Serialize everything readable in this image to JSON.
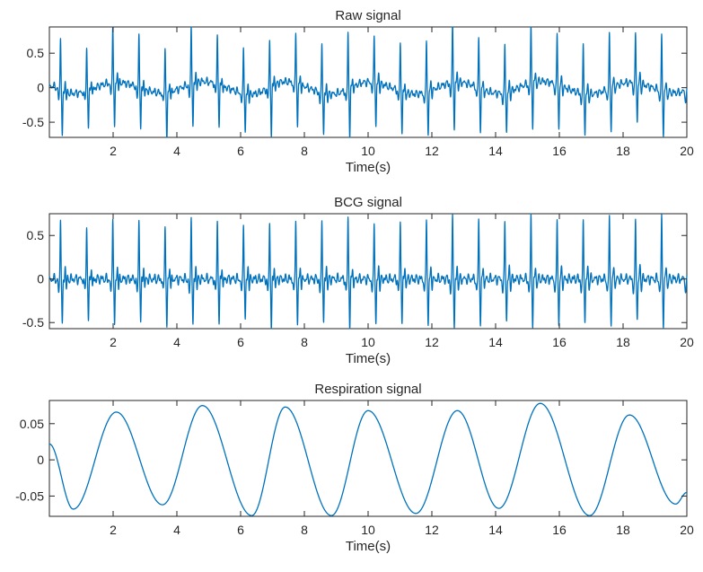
{
  "figure": {
    "line_color": "#0072BD",
    "axes_color": "#262626"
  },
  "chart_data": [
    {
      "type": "line",
      "title": "Raw signal",
      "xlabel": "Time(s)",
      "ylabel": "",
      "xlim": [
        0,
        20
      ],
      "ylim": [
        -0.72,
        0.88
      ],
      "xticks": [
        2,
        4,
        6,
        8,
        10,
        12,
        14,
        16,
        18,
        20
      ],
      "yticks": [
        0.5,
        0,
        -0.5
      ],
      "ytick_labels": [
        "0.5",
        "0",
        "-0.5"
      ],
      "grid": false,
      "series": [
        {
          "waveform": "bcg",
          "beat_period_s": 0.82,
          "first_beat_s": 0.35,
          "peak_amplitudes": [
            0.78,
            0.65,
            0.88,
            0.8,
            0.7,
            0.88,
            0.75,
            0.72,
            0.7,
            0.78,
            0.74,
            0.85,
            0.72,
            0.7,
            0.78,
            0.9,
            0.74,
            0.72,
            0.82,
            0.76,
            0.7,
            0.8,
            0.72,
            0.78,
            0.72
          ],
          "trough_amplitudes": [
            -0.7,
            -0.55,
            -0.68,
            -0.6,
            -0.72,
            -0.65,
            -0.6,
            -0.58,
            -0.72,
            -0.62,
            -0.6,
            -0.7,
            -0.64,
            -0.58,
            -0.62,
            -0.68,
            -0.6,
            -0.58,
            -0.64,
            -0.62,
            -0.58,
            -0.6,
            -0.56,
            -0.62,
            -0.58
          ],
          "respiration_offset": true
        }
      ]
    },
    {
      "type": "line",
      "title": "BCG signal",
      "xlabel": "Time(s)",
      "ylabel": "",
      "xlim": [
        0,
        20
      ],
      "ylim": [
        -0.57,
        0.75
      ],
      "xticks": [
        2,
        4,
        6,
        8,
        10,
        12,
        14,
        16,
        18,
        20
      ],
      "yticks": [
        0.5,
        0,
        -0.5
      ],
      "ytick_labels": [
        "0.5",
        "0",
        "-0.5"
      ],
      "grid": false,
      "series": [
        {
          "waveform": "bcg",
          "beat_period_s": 0.82,
          "first_beat_s": 0.35,
          "peak_amplitudes": [
            0.72,
            0.62,
            0.75,
            0.7,
            0.66,
            0.75,
            0.7,
            0.68,
            0.66,
            0.72,
            0.7,
            0.74,
            0.68,
            0.66,
            0.72,
            0.75,
            0.7,
            0.68,
            0.73,
            0.7,
            0.66,
            0.72,
            0.68,
            0.7,
            0.68
          ],
          "trough_amplitudes": [
            -0.55,
            -0.48,
            -0.56,
            -0.5,
            -0.56,
            -0.54,
            -0.5,
            -0.48,
            -0.56,
            -0.52,
            -0.5,
            -0.55,
            -0.52,
            -0.48,
            -0.52,
            -0.55,
            -0.5,
            -0.48,
            -0.52,
            -0.52,
            -0.48,
            -0.5,
            -0.46,
            -0.52,
            -0.48
          ],
          "respiration_offset": false
        }
      ]
    },
    {
      "type": "line",
      "title": "Respiration signal",
      "xlabel": "Time(s)",
      "ylabel": "",
      "xlim": [
        0,
        20
      ],
      "ylim": [
        -0.078,
        0.082
      ],
      "xticks": [
        2,
        4,
        6,
        8,
        10,
        12,
        14,
        16,
        18,
        20
      ],
      "yticks": [
        0.05,
        0,
        -0.05
      ],
      "ytick_labels": [
        "0.05",
        "0",
        "-0.05"
      ],
      "grid": false,
      "series": [
        {
          "waveform": "extrema",
          "points": [
            [
              0,
              0.022
            ],
            [
              0.75,
              -0.068
            ],
            [
              2.1,
              0.066
            ],
            [
              3.55,
              -0.062
            ],
            [
              4.8,
              0.075
            ],
            [
              6.35,
              -0.077
            ],
            [
              7.4,
              0.073
            ],
            [
              8.85,
              -0.077
            ],
            [
              10.0,
              0.068
            ],
            [
              11.5,
              -0.074
            ],
            [
              12.8,
              0.068
            ],
            [
              14.1,
              -0.067
            ],
            [
              15.4,
              0.078
            ],
            [
              16.95,
              -0.077
            ],
            [
              18.2,
              0.062
            ],
            [
              19.65,
              -0.061
            ],
            [
              20,
              -0.045
            ]
          ]
        }
      ]
    }
  ]
}
